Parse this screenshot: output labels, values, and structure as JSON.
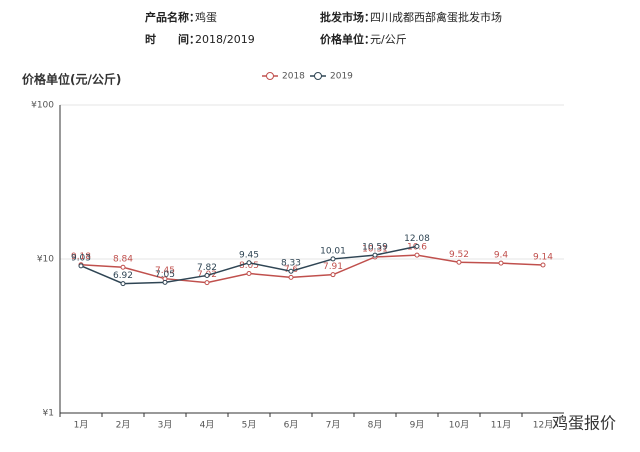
{
  "header": {
    "fields": [
      {
        "label": "产品名称：",
        "value": "鸡蛋"
      },
      {
        "label": "批发市场：",
        "value": "四川成都西部禽蛋批发市场"
      },
      {
        "label": "时　　间：",
        "value": "2018/2019"
      },
      {
        "label": "价格单位：",
        "value": "元/公斤"
      }
    ]
  },
  "watermark": "鸡蛋报价",
  "chart_data": {
    "type": "line",
    "y_label": "价格单位(元/公斤)",
    "categories": [
      "1月",
      "2月",
      "3月",
      "4月",
      "5月",
      "6月",
      "7月",
      "8月",
      "9月",
      "10月",
      "11月",
      "12月"
    ],
    "series": [
      {
        "name": "2018",
        "color": "#c0504d",
        "values": [
          9.18,
          8.84,
          7.45,
          7.02,
          8.05,
          7.6,
          7.91,
          10.31,
          10.6,
          9.52,
          9.4,
          9.14
        ]
      },
      {
        "name": "2019",
        "color": "#2f4554",
        "values": [
          9.03,
          6.92,
          7.05,
          7.82,
          9.45,
          8.33,
          10.01,
          10.59,
          12.08,
          null,
          null,
          null
        ]
      }
    ],
    "ylim": [
      1,
      100
    ],
    "log_scale": true,
    "yticks": [
      {
        "value": 1,
        "label": "¥1"
      },
      {
        "value": 10,
        "label": "¥10"
      },
      {
        "value": 100,
        "label": "¥100"
      }
    ],
    "grid": true,
    "legend": "top"
  }
}
